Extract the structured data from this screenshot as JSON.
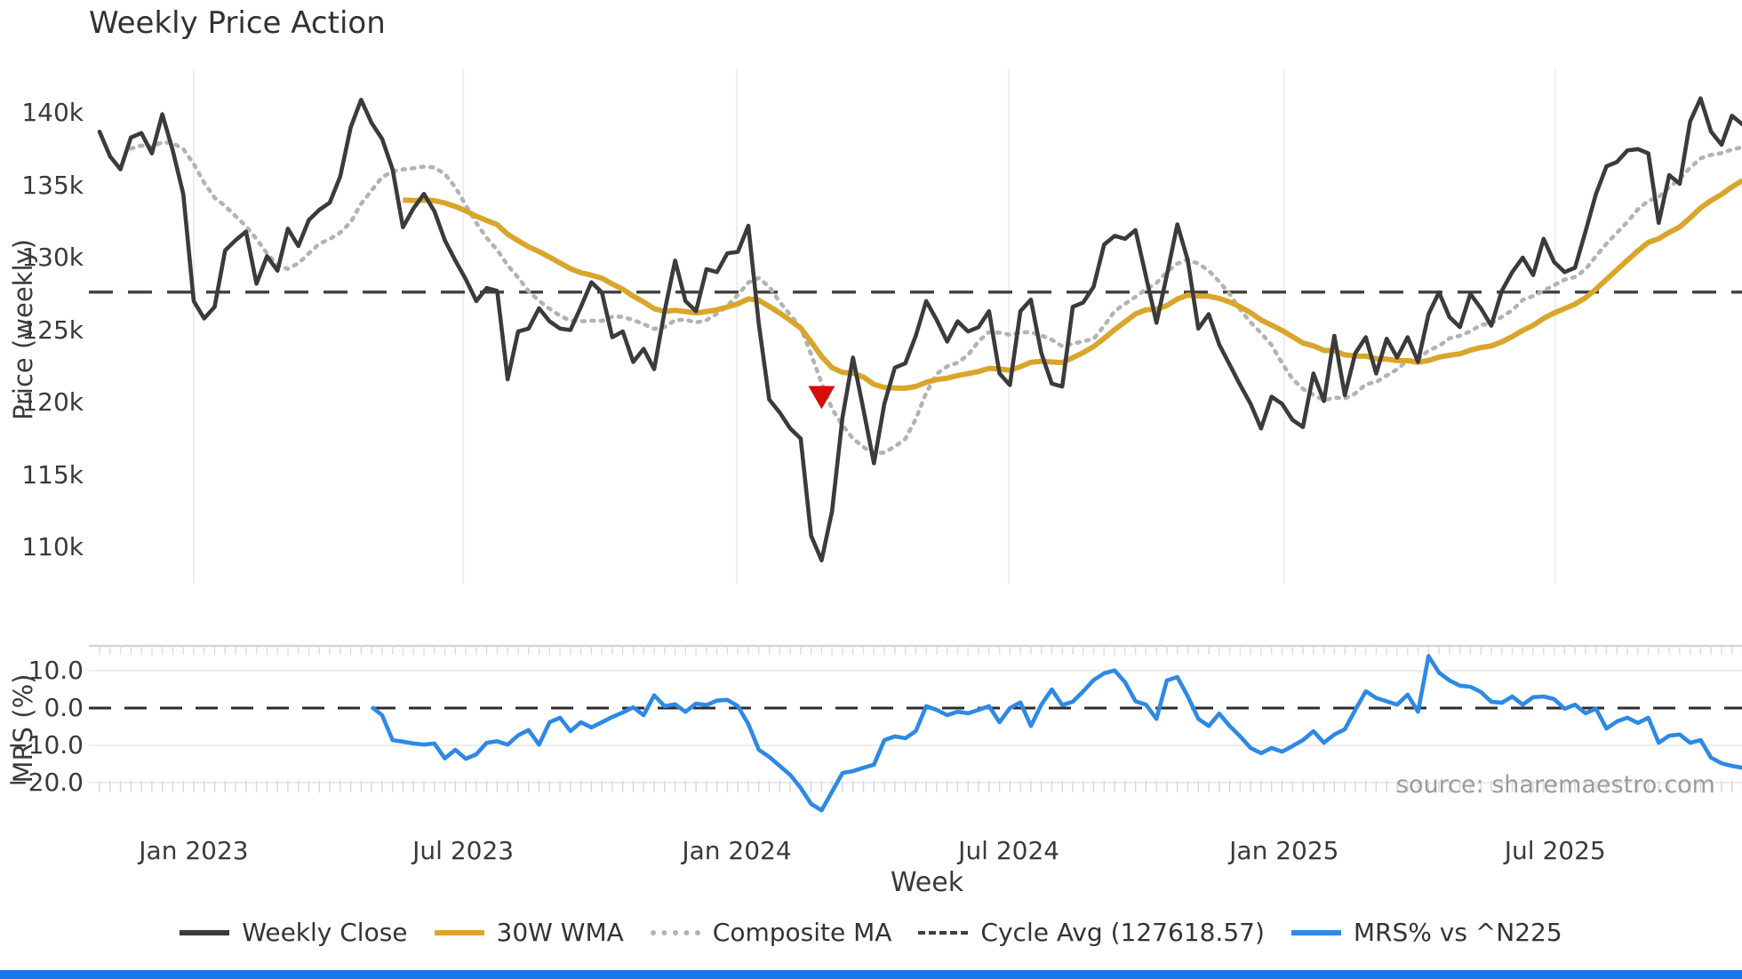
{
  "title": "Weekly Price Action",
  "source": "source: sharemaestro.com",
  "colors": {
    "close": "#3b3b3b",
    "wma": "#d9a62c",
    "composite": "#b3b3b3",
    "cycle": "#3f3f3f",
    "mrs": "#2e89e5",
    "marker": "#d40d0d",
    "grid": "#ededed",
    "panel_border": "#d6d6d6",
    "accent_bar": "#1d76e8"
  },
  "price_axis": {
    "label": "Price (weekly)",
    "ticks": [
      "140k",
      "135k",
      "130k",
      "125k",
      "120k",
      "115k",
      "110k"
    ],
    "tick_values": [
      140000,
      135000,
      130000,
      125000,
      120000,
      115000,
      110000
    ]
  },
  "mrs_axis": {
    "label": "MRS (%)",
    "ticks": [
      "10.0",
      "0.0",
      "−10.0",
      "−20.0"
    ],
    "tick_values": [
      10,
      0,
      -10,
      -20
    ]
  },
  "x_axis": {
    "label": "Week",
    "ticks": [
      "Jan 2023",
      "Jul 2023",
      "Jan 2024",
      "Jul 2024",
      "Jan 2025",
      "Jul 2025"
    ],
    "tick_weeks": [
      9.0,
      34.75,
      60.9,
      86.9,
      113.2,
      139.1
    ]
  },
  "legend": [
    {
      "label": "Weekly Close",
      "swatch": "solid",
      "color": "#3b3b3b"
    },
    {
      "label": "30W WMA",
      "swatch": "solid",
      "color": "#d9a62c"
    },
    {
      "label": "Composite MA",
      "swatch": "dotted",
      "color": "#b3b3b3"
    },
    {
      "label": "Cycle Avg (127618.57)",
      "swatch": "dashed",
      "color": "#3f3f3f"
    },
    {
      "label": "MRS% vs ^N225",
      "swatch": "solid",
      "color": "#2e89e5"
    }
  ],
  "chart_data": [
    {
      "type": "line",
      "panel": "price",
      "title": "Weekly Price Action",
      "ylabel": "Price (weekly)",
      "ylim": [
        107300,
        143000
      ],
      "grid": "vertical-only",
      "reference_line": {
        "name": "Cycle Avg",
        "value": 127618.57,
        "style": "dashed"
      },
      "marker": {
        "name": "sell-signal",
        "week": 69,
        "price": 120400,
        "symbol": "triangle-down",
        "color": "#d40d0d"
      },
      "series": [
        {
          "name": "Weekly Close",
          "color": "#3b3b3b",
          "start_week": 0,
          "values": [
            138700,
            137000,
            136100,
            138300,
            138600,
            137200,
            139900,
            137400,
            134400,
            127000,
            125800,
            126600,
            130500,
            131200,
            131800,
            128200,
            130100,
            129100,
            132000,
            130800,
            132600,
            133300,
            133800,
            135600,
            139000,
            140900,
            139300,
            138200,
            136100,
            132100,
            133400,
            134400,
            133200,
            131200,
            129800,
            128500,
            127000,
            127900,
            127700,
            121600,
            124900,
            125100,
            126500,
            125600,
            125100,
            125000,
            126600,
            128300,
            127600,
            124500,
            124900,
            122800,
            123700,
            122300,
            126300,
            129800,
            127000,
            126300,
            129200,
            129000,
            130300,
            130400,
            132200,
            125400,
            120200,
            119300,
            118200,
            117500,
            110800,
            109100,
            112500,
            119000,
            123100,
            119500,
            115800,
            119900,
            122400,
            122700,
            124600,
            127000,
            125700,
            124200,
            125600,
            124900,
            125200,
            126300,
            122000,
            121200,
            126300,
            127100,
            123400,
            121300,
            121100,
            126600,
            126900,
            128000,
            130900,
            131500,
            131300,
            131900,
            128700,
            125500,
            128800,
            132300,
            129800,
            125100,
            126100,
            124000,
            122600,
            121200,
            119900,
            118200,
            120400,
            119900,
            118800,
            118300,
            122000,
            120100,
            124600,
            120500,
            123400,
            124500,
            122000,
            124400,
            123100,
            124500,
            122800,
            126100,
            127600,
            125900,
            125200,
            127500,
            126500,
            125300,
            127700,
            129000,
            130000,
            128800,
            131300,
            129700,
            129000,
            129300,
            131800,
            134400,
            136300,
            136600,
            137400,
            137500,
            137200,
            132400,
            135700,
            135100,
            139400,
            141000,
            138700,
            137800,
            139800,
            139200
          ]
        },
        {
          "name": "30W WMA",
          "color": "#d9a62c",
          "derived": "weighted_ma",
          "window": 30
        },
        {
          "name": "Composite MA",
          "color": "#b3b3b3",
          "derived": "trailing_ma",
          "window": 10
        }
      ]
    },
    {
      "type": "line",
      "panel": "mrs",
      "ylabel": "MRS (%)",
      "ylim": [
        -28.1,
        16.7
      ],
      "grid": "horizontal-only",
      "reference_line": {
        "name": "zero",
        "value": 0,
        "style": "dashed"
      },
      "series": [
        {
          "name": "MRS% vs ^N225",
          "color": "#2e89e5",
          "start_week": 26,
          "values": [
            0.3,
            -1.9,
            -8.6,
            -9.0,
            -9.5,
            -9.8,
            -9.5,
            -13.5,
            -11.2,
            -13.6,
            -12.4,
            -9.3,
            -8.9,
            -9.8,
            -7.3,
            -5.9,
            -9.8,
            -3.8,
            -2.6,
            -6.2,
            -3.8,
            -5.2,
            -3.8,
            -2.4,
            -1.2,
            0.2,
            -1.9,
            3.4,
            0.5,
            1.0,
            -1.0,
            1.2,
            0.8,
            2.0,
            2.2,
            0.5,
            -4.3,
            -11.2,
            -13.1,
            -15.5,
            -17.9,
            -21.4,
            -25.7,
            -27.4,
            -22.4,
            -17.4,
            -16.9,
            -16.0,
            -15.2,
            -8.6,
            -7.6,
            -8.1,
            -6.2,
            0.5,
            -0.5,
            -1.9,
            -1.0,
            -1.4,
            -0.5,
            0.5,
            -3.8,
            0.0,
            1.5,
            -4.8,
            0.9,
            5.0,
            0.8,
            1.7,
            4.5,
            7.5,
            9.3,
            10.1,
            6.9,
            1.8,
            0.9,
            -2.9,
            7.4,
            8.3,
            3.1,
            -2.9,
            -4.8,
            -1.5,
            -4.8,
            -7.6,
            -10.7,
            -12.1,
            -10.7,
            -11.7,
            -10.2,
            -8.6,
            -6.2,
            -9.3,
            -7.1,
            -5.7,
            -0.5,
            4.5,
            2.7,
            1.8,
            0.9,
            3.6,
            -1.0,
            13.9,
            9.5,
            7.4,
            6.0,
            5.7,
            4.3,
            1.7,
            1.4,
            3.1,
            0.9,
            2.9,
            3.1,
            2.4,
            -0.2,
            0.9,
            -1.4,
            -0.2,
            -5.5,
            -3.6,
            -2.6,
            -4.0,
            -2.6,
            -9.3,
            -7.4,
            -7.1,
            -9.3,
            -8.6,
            -13.3,
            -14.8,
            -15.5,
            -16.0
          ]
        }
      ]
    }
  ]
}
